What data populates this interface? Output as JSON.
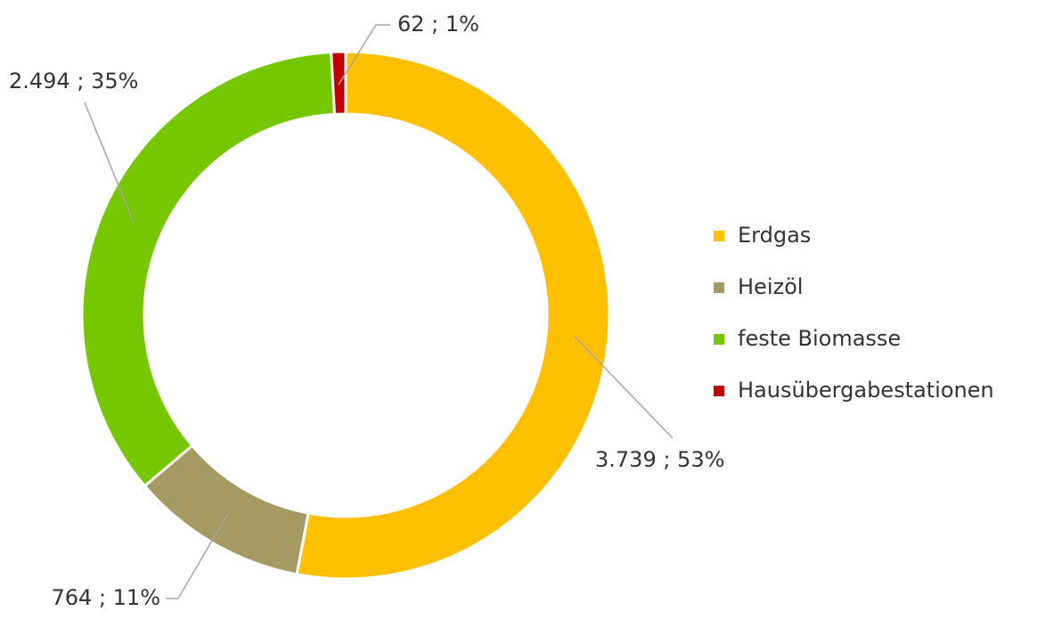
{
  "chart_data": {
    "type": "donut",
    "categories": [
      "Erdgas",
      "Heizöl",
      "feste Biomasse",
      "Hausübergabestationen"
    ],
    "values": [
      3739,
      764,
      2494,
      62
    ],
    "value_labels": [
      "3.739 ; 53%",
      "764 ; 11%",
      "2.494 ; 35%",
      "62 ; 1%"
    ],
    "colors": [
      "#ffc000",
      "#a59a62",
      "#76c700",
      "#c00000"
    ],
    "legend": "right"
  }
}
